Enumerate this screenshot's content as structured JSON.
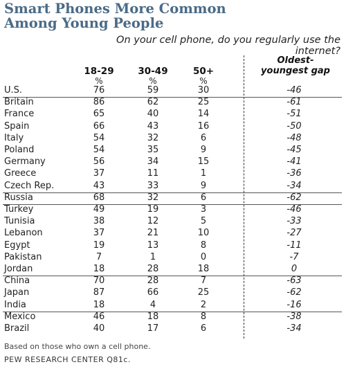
{
  "chart_data": {
    "type": "table",
    "title_lines": [
      "Smart Phones More Common",
      "Among Young People"
    ],
    "question": "On your cell phone, do you regularly use the internet?",
    "columns": [
      "18-29",
      "30-49",
      "50+"
    ],
    "unit": "%",
    "gap_header_lines": [
      "Oldest-",
      "youngest gap"
    ],
    "groups": [
      {
        "rows": [
          {
            "country": "U.S.",
            "values": [
              76,
              59,
              30
            ],
            "gap": "-46"
          }
        ]
      },
      {
        "rows": [
          {
            "country": "Britain",
            "values": [
              86,
              62,
              25
            ],
            "gap": "-61"
          },
          {
            "country": "France",
            "values": [
              65,
              40,
              14
            ],
            "gap": "-51"
          },
          {
            "country": "Spain",
            "values": [
              66,
              43,
              16
            ],
            "gap": "-50"
          },
          {
            "country": "Italy",
            "values": [
              54,
              32,
              6
            ],
            "gap": "-48"
          },
          {
            "country": "Poland",
            "values": [
              54,
              35,
              9
            ],
            "gap": "-45"
          },
          {
            "country": "Germany",
            "values": [
              56,
              34,
              15
            ],
            "gap": "-41"
          },
          {
            "country": "Greece",
            "values": [
              37,
              11,
              1
            ],
            "gap": "-36"
          },
          {
            "country": "Czech Rep.",
            "values": [
              43,
              33,
              9
            ],
            "gap": "-34"
          }
        ]
      },
      {
        "rows": [
          {
            "country": "Russia",
            "values": [
              68,
              32,
              6
            ],
            "gap": "-62"
          }
        ]
      },
      {
        "rows": [
          {
            "country": "Turkey",
            "values": [
              49,
              19,
              3
            ],
            "gap": "-46"
          },
          {
            "country": "Tunisia",
            "values": [
              38,
              12,
              5
            ],
            "gap": "-33"
          },
          {
            "country": "Lebanon",
            "values": [
              37,
              21,
              10
            ],
            "gap": "-27"
          },
          {
            "country": "Egypt",
            "values": [
              19,
              13,
              8
            ],
            "gap": "-11"
          },
          {
            "country": "Pakistan",
            "values": [
              7,
              1,
              0
            ],
            "gap": "-7"
          },
          {
            "country": "Jordan",
            "values": [
              18,
              28,
              18
            ],
            "gap": "0"
          }
        ]
      },
      {
        "rows": [
          {
            "country": "China",
            "values": [
              70,
              28,
              7
            ],
            "gap": "-63"
          },
          {
            "country": "Japan",
            "values": [
              87,
              66,
              25
            ],
            "gap": "-62"
          },
          {
            "country": "India",
            "values": [
              18,
              4,
              2
            ],
            "gap": "-16"
          }
        ]
      },
      {
        "rows": [
          {
            "country": "Mexico",
            "values": [
              46,
              18,
              8
            ],
            "gap": "-38"
          },
          {
            "country": "Brazil",
            "values": [
              40,
              17,
              6
            ],
            "gap": "-34"
          }
        ]
      }
    ],
    "note": "Based on those who own a cell phone.",
    "source": "PEW RESEARCH CENTER Q81c."
  },
  "colors": {
    "title": "#4a6b87",
    "text": "#222222",
    "rule": "#555555"
  }
}
